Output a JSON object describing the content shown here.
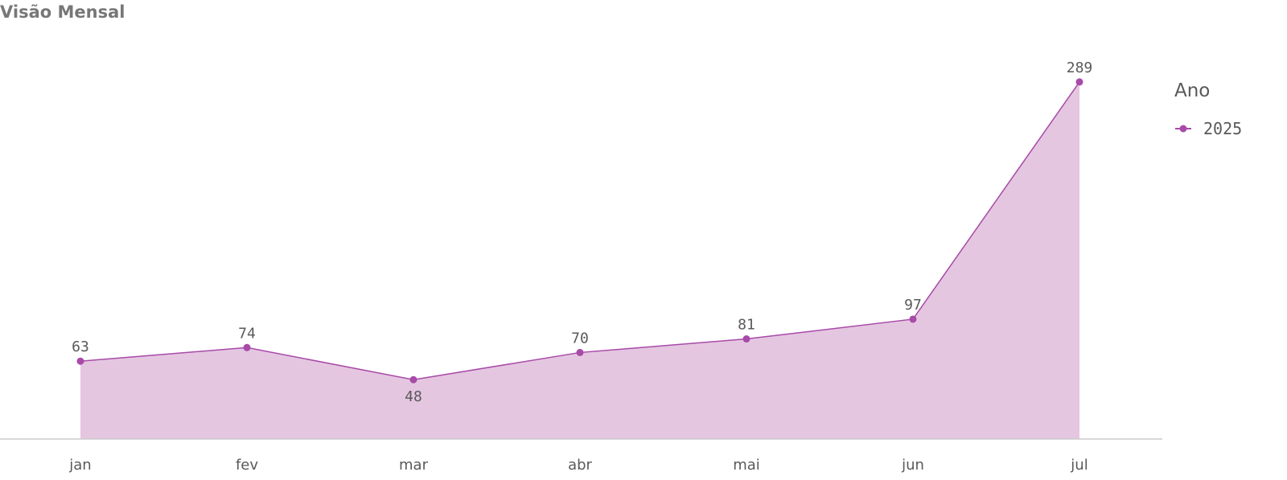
{
  "chart_data": {
    "type": "area",
    "title": "Visão Mensal",
    "categories": [
      "jan",
      "fev",
      "mar",
      "abr",
      "mai",
      "jun",
      "jul"
    ],
    "legend_title": "Ano",
    "series": [
      {
        "name": "2025",
        "color": "#a84aa8",
        "fill": "#e4c6e0",
        "values": [
          63,
          74,
          48,
          70,
          81,
          97,
          289
        ]
      }
    ],
    "ylim": [
      0,
      300
    ],
    "legend": "right"
  }
}
